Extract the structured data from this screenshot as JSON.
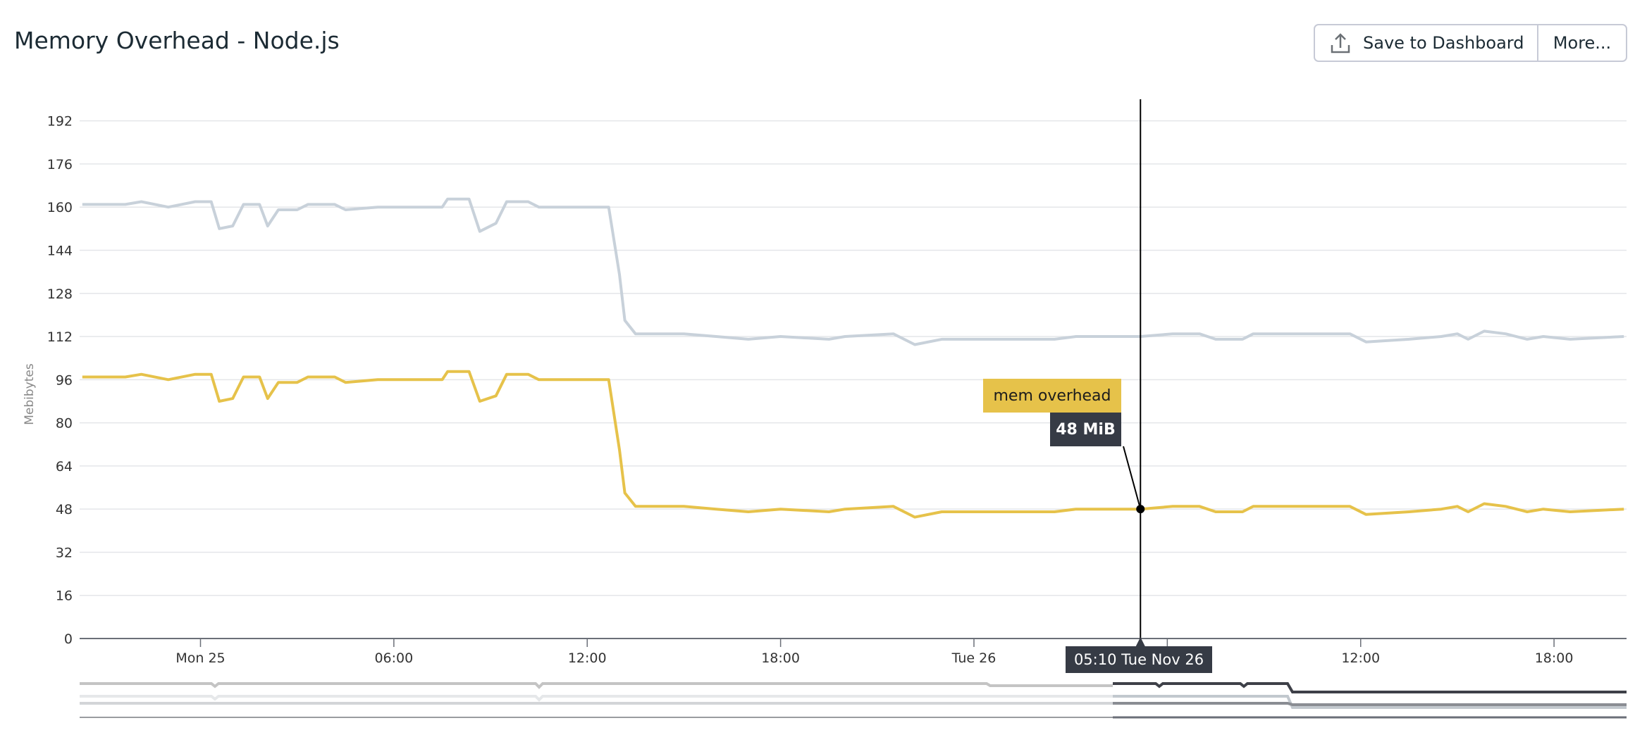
{
  "header": {
    "title": "Memory Overhead - Node.js",
    "save_label": "Save to Dashboard",
    "save_icon": "upload-icon",
    "more_label": "More..."
  },
  "tooltip": {
    "series_name": "mem overhead",
    "value": "48 MiB",
    "time_label": "05:10 Tue Nov 26"
  },
  "chart_data": {
    "type": "line",
    "title": "Memory Overhead - Node.js",
    "xlabel": "",
    "ylabel": "Mebibytes",
    "ylim": [
      0,
      200
    ],
    "yticks": [
      0,
      16,
      32,
      48,
      64,
      80,
      96,
      112,
      128,
      144,
      160,
      176,
      192
    ],
    "xlim": [
      "11-24 20:15",
      "11-26 20:15"
    ],
    "xticks": [
      {
        "t": "11-25 00:00",
        "label": "Mon 25"
      },
      {
        "t": "11-25 06:00",
        "label": "06:00"
      },
      {
        "t": "11-25 12:00",
        "label": "12:00"
      },
      {
        "t": "11-25 18:00",
        "label": "18:00"
      },
      {
        "t": "11-26 00:00",
        "label": "Tue 26"
      },
      {
        "t": "11-26 06:00",
        "label": ""
      },
      {
        "t": "11-26 12:00",
        "label": "12:00"
      },
      {
        "t": "11-26 18:00",
        "label": "18:00"
      }
    ],
    "grid": true,
    "crosshair": "11-26 05:10",
    "x": [
      "11-24 20:20",
      "11-24 21:40",
      "11-24 22:10",
      "11-24 23:00",
      "11-24 23:50",
      "11-25 00:20",
      "11-25 00:35",
      "11-25 01:00",
      "11-25 01:20",
      "11-25 01:50",
      "11-25 02:05",
      "11-25 02:25",
      "11-25 03:00",
      "11-25 03:20",
      "11-25 04:10",
      "11-25 04:30",
      "11-25 05:30",
      "11-25 07:30",
      "11-25 07:40",
      "11-25 08:20",
      "11-25 08:40",
      "11-25 09:10",
      "11-25 09:30",
      "11-25 10:10",
      "11-25 10:30",
      "11-25 12:40",
      "11-25 13:00",
      "11-25 13:10",
      "11-25 13:30",
      "11-25 15:00",
      "11-25 16:00",
      "11-25 17:00",
      "11-25 18:00",
      "11-25 19:30",
      "11-25 20:00",
      "11-25 21:30",
      "11-25 22:10",
      "11-25 23:00",
      "11-26 02:30",
      "11-26 03:10",
      "11-26 05:10",
      "11-26 06:10",
      "11-26 07:00",
      "11-26 07:30",
      "11-26 08:20",
      "11-26 08:40",
      "11-26 11:40",
      "11-26 12:10",
      "11-26 13:30",
      "11-26 14:30",
      "11-26 15:00",
      "11-26 15:20",
      "11-26 15:50",
      "11-26 16:30",
      "11-26 17:10",
      "11-26 17:40",
      "11-26 18:30",
      "11-26 20:10"
    ],
    "series": [
      {
        "color": "#c8d1da",
        "values": [
          161,
          161,
          162,
          160,
          162,
          162,
          152,
          153,
          161,
          161,
          153,
          159,
          159,
          161,
          161,
          159,
          160,
          160,
          163,
          163,
          151,
          154,
          162,
          162,
          160,
          160,
          135,
          118,
          113,
          113,
          112,
          111,
          112,
          111,
          112,
          113,
          109,
          111,
          111,
          112,
          112,
          113,
          113,
          111,
          111,
          113,
          113,
          110,
          111,
          112,
          113,
          111,
          114,
          113,
          111,
          112,
          111,
          112
        ]
      },
      {
        "name": "mem overhead",
        "color": "#e6c24a",
        "values": [
          97,
          97,
          98,
          96,
          98,
          98,
          88,
          89,
          97,
          97,
          89,
          95,
          95,
          97,
          97,
          95,
          96,
          96,
          99,
          99,
          88,
          90,
          98,
          98,
          96,
          96,
          70,
          54,
          49,
          49,
          48,
          47,
          48,
          47,
          48,
          49,
          45,
          47,
          47,
          48,
          48,
          49,
          49,
          47,
          47,
          49,
          49,
          46,
          47,
          48,
          49,
          47,
          50,
          49,
          47,
          48,
          47,
          48
        ]
      }
    ]
  }
}
